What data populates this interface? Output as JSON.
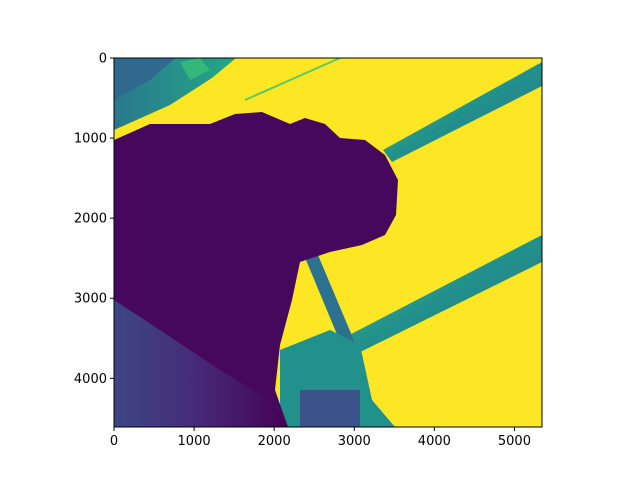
{
  "chart_data": {
    "type": "heatmap",
    "title": "",
    "xlabel": "",
    "ylabel": "",
    "colormap": "viridis",
    "colorbar": false,
    "grid": false,
    "xlim": [
      0,
      5344
    ],
    "ylim": [
      4608,
      0
    ],
    "x_ticks": [
      0,
      1000,
      2000,
      3000,
      4000,
      5000
    ],
    "y_ticks": [
      0,
      1000,
      2000,
      3000,
      4000
    ],
    "x_tick_labels": [
      "0",
      "1000",
      "2000",
      "3000",
      "4000",
      "5000"
    ],
    "y_tick_labels": [
      "0",
      "1000",
      "2000",
      "3000",
      "4000"
    ],
    "colors": {
      "low": "#440154",
      "dark": "#46085c",
      "mid_dark": "#3b528b",
      "mid": "#21918c",
      "mid_light": "#5ec962",
      "high": "#fde725"
    }
  }
}
